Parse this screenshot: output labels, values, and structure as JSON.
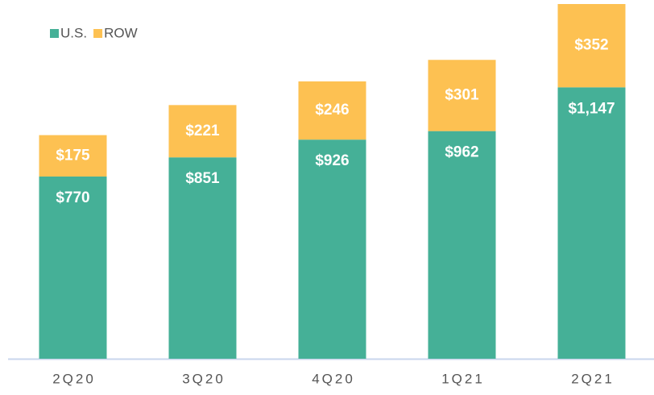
{
  "chart_data": {
    "type": "stacked_bar",
    "categories": [
      "2Q20",
      "3Q20",
      "4Q20",
      "1Q21",
      "2Q21"
    ],
    "series": [
      {
        "name": "U.S.",
        "color": "#45b097",
        "values": [
          770,
          851,
          926,
          962,
          1147
        ],
        "value_labels": [
          "$770",
          "$851",
          "$926",
          "$962",
          "$1,147"
        ]
      },
      {
        "name": "ROW",
        "color": "#fdc152",
        "values": [
          175,
          221,
          246,
          301,
          352
        ],
        "value_labels": [
          "$175",
          "$221",
          "$246",
          "$301",
          "$352"
        ]
      }
    ],
    "legend": "top-left"
  }
}
